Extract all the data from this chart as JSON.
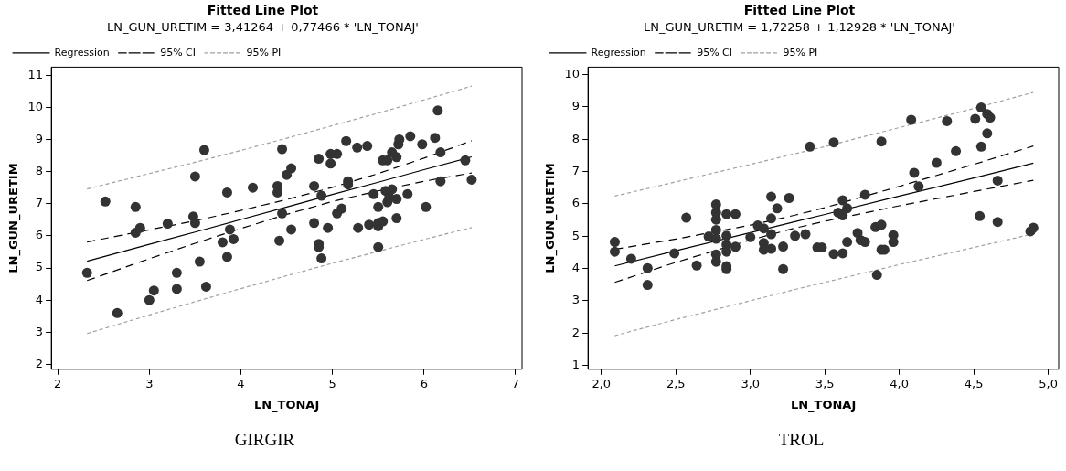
{
  "chart_data": [
    {
      "type": "scatter",
      "title": "Fitted Line Plot",
      "subtitle": "LN_GUN_URETIM = 3,41264 + 0,77466 * 'LN_TONAJ'",
      "xlabel": "LN_TONAJ",
      "ylabel": "LN_GUN_URETIM",
      "xlim": [
        1.93,
        7.07
      ],
      "ylim": [
        1.85,
        11.25
      ],
      "xticks": [
        2,
        3,
        4,
        5,
        6,
        7
      ],
      "yticks": [
        2,
        3,
        4,
        5,
        6,
        7,
        8,
        9,
        10,
        11
      ],
      "grid": false,
      "legend": "top left",
      "annotations": [
        "GIRGIR"
      ],
      "series": [
        {
          "type": "scatter",
          "color": "#333333",
          "marker": "circle",
          "x": [
            2.32,
            2.52,
            2.65,
            2.85,
            2.85,
            2.9,
            3.0,
            3.05,
            3.2,
            3.3,
            3.3,
            3.48,
            3.5,
            3.5,
            3.55,
            3.6,
            3.62,
            3.8,
            3.85,
            3.85,
            3.88,
            3.92,
            4.13,
            4.4,
            4.4,
            4.42,
            4.45,
            4.45,
            4.5,
            4.55,
            4.55,
            4.8,
            4.8,
            4.85,
            4.85,
            4.85,
            4.88,
            4.88,
            4.95,
            4.98,
            4.98,
            5.05,
            5.05,
            5.1,
            5.15,
            5.17,
            5.17,
            5.28,
            5.27,
            5.38,
            5.4,
            5.45,
            5.5,
            5.5,
            5.5,
            5.5,
            5.55,
            5.55,
            5.58,
            5.6,
            5.6,
            5.62,
            5.65,
            5.65,
            5.7,
            5.7,
            5.7,
            5.72,
            5.73,
            5.82,
            5.85,
            5.98,
            6.02,
            6.12,
            6.15,
            6.18,
            6.18,
            6.45,
            6.52
          ],
          "values": [
            4.85,
            7.07,
            3.6,
            6.9,
            6.1,
            6.25,
            4.0,
            4.3,
            6.38,
            4.85,
            4.35,
            6.6,
            7.85,
            6.4,
            5.2,
            8.67,
            4.42,
            5.8,
            7.35,
            5.35,
            6.2,
            5.9,
            7.5,
            7.55,
            7.35,
            5.85,
            6.7,
            8.7,
            7.9,
            8.1,
            6.2,
            6.4,
            7.55,
            8.4,
            5.75,
            5.65,
            5.3,
            7.25,
            6.25,
            8.25,
            8.55,
            8.55,
            6.7,
            6.85,
            8.95,
            7.7,
            7.6,
            6.25,
            8.75,
            8.8,
            6.35,
            7.3,
            6.9,
            6.4,
            6.3,
            5.65,
            6.45,
            8.35,
            7.4,
            7.05,
            8.35,
            7.2,
            7.45,
            8.6,
            6.55,
            7.15,
            8.45,
            8.85,
            9.0,
            7.3,
            9.1,
            8.85,
            6.9,
            9.05,
            9.9,
            8.6,
            7.7,
            8.35,
            7.75
          ]
        },
        {
          "name": "Regression",
          "type": "line",
          "color": "#000000",
          "line_style": "solid",
          "marker": "none",
          "x": [
            2.32,
            3.0,
            3.5,
            4.0,
            4.5,
            5.0,
            5.5,
            6.0,
            6.52
          ],
          "values": [
            5.21,
            5.74,
            6.12,
            6.51,
            6.9,
            7.29,
            7.67,
            8.06,
            8.46
          ]
        },
        {
          "name": "95% CI",
          "type": "line",
          "color": "#000000",
          "line_style": "dashed",
          "marker": "none",
          "x": [
            2.32,
            3.0,
            3.5,
            4.0,
            4.5,
            5.0,
            5.5,
            6.0,
            6.52
          ],
          "values": [
            5.81,
            6.19,
            6.47,
            6.79,
            7.13,
            7.51,
            7.94,
            8.42,
            8.96
          ]
        },
        {
          "type": "line",
          "color": "#000000",
          "line_style": "dashed",
          "marker": "none",
          "x": [
            2.32,
            3.0,
            3.5,
            4.0,
            4.5,
            5.0,
            5.5,
            6.0,
            6.52
          ],
          "values": [
            4.61,
            5.29,
            5.77,
            6.23,
            6.67,
            7.07,
            7.4,
            7.7,
            7.96
          ]
        },
        {
          "name": "95% PI",
          "type": "line",
          "color": "#a0a0a0",
          "line_style": "dotted",
          "marker": "none",
          "x": [
            2.32,
            3.0,
            3.5,
            4.0,
            4.5,
            5.0,
            5.5,
            6.0,
            6.52
          ],
          "values": [
            7.46,
            7.94,
            8.29,
            8.66,
            9.04,
            9.43,
            9.82,
            10.23,
            10.66
          ]
        },
        {
          "type": "line",
          "color": "#a0a0a0",
          "line_style": "dotted",
          "marker": "none",
          "x": [
            2.32,
            3.0,
            3.5,
            4.0,
            4.5,
            5.0,
            5.5,
            6.0,
            6.52
          ],
          "values": [
            2.96,
            3.54,
            3.95,
            4.36,
            4.76,
            5.15,
            5.52,
            5.89,
            6.26
          ]
        }
      ]
    },
    {
      "type": "scatter",
      "title": "Fitted Line Plot",
      "subtitle": "LN_GUN_URETIM = 1,72258 + 1,12928 * 'LN_TONAJ'",
      "xlabel": "LN_TONAJ",
      "ylabel": "LN_GUN_URETIM",
      "xlim": [
        1.91,
        5.07
      ],
      "ylim": [
        0.88,
        10.23
      ],
      "xticks": [
        {
          "value": 2,
          "label": "2,0"
        },
        {
          "value": 2.5,
          "label": "2,5"
        },
        {
          "value": 3,
          "label": "3,0"
        },
        {
          "value": 3.5,
          "label": "3,5"
        },
        {
          "value": 4,
          "label": "4,0"
        },
        {
          "value": 4.5,
          "label": "4,5"
        },
        {
          "value": 5,
          "label": "5,0"
        }
      ],
      "yticks": [
        1,
        2,
        3,
        4,
        5,
        6,
        7,
        8,
        9,
        10
      ],
      "grid": false,
      "legend": "top left",
      "annotations": [
        "TROL"
      ],
      "series": [
        {
          "type": "scatter",
          "color": "#333333",
          "marker": "circle",
          "x": [
            2.09,
            2.09,
            2.2,
            2.31,
            2.31,
            2.49,
            2.57,
            2.64,
            2.72,
            2.77,
            2.77,
            2.77,
            2.77,
            2.77,
            2.77,
            2.77,
            2.84,
            2.84,
            2.84,
            2.84,
            2.84,
            2.84,
            2.9,
            2.9,
            3.0,
            3.05,
            3.09,
            3.09,
            3.09,
            3.14,
            3.14,
            3.14,
            3.14,
            3.18,
            3.22,
            3.22,
            3.26,
            3.3,
            3.37,
            3.4,
            3.45,
            3.56,
            3.48,
            3.56,
            3.62,
            3.65,
            3.62,
            3.65,
            3.59,
            3.62,
            3.77,
            3.72,
            3.74,
            3.77,
            3.84,
            3.88,
            3.88,
            3.9,
            3.88,
            3.85,
            3.96,
            3.96,
            4.08,
            4.1,
            4.13,
            4.25,
            4.32,
            4.38,
            4.51,
            4.55,
            4.59,
            4.61,
            4.59,
            4.55,
            4.54,
            4.66,
            4.66,
            4.88,
            4.9
          ],
          "values": [
            4.82,
            4.52,
            4.3,
            4.01,
            3.49,
            4.47,
            5.57,
            4.09,
            4.99,
            5.98,
            5.73,
            5.51,
            5.19,
            4.92,
            4.43,
            4.21,
            5.68,
            5.01,
            4.74,
            4.52,
            4.07,
            3.98,
            5.68,
            4.67,
            4.97,
            5.33,
            5.24,
            4.79,
            4.58,
            6.22,
            5.55,
            5.06,
            4.61,
            5.86,
            4.68,
            3.98,
            6.18,
            5.01,
            5.06,
            7.77,
            4.65,
            7.9,
            4.65,
            4.45,
            4.47,
            4.82,
            6.11,
            5.86,
            5.73,
            5.64,
            6.28,
            5.1,
            4.88,
            4.82,
            5.28,
            5.35,
            4.58,
            4.58,
            7.93,
            3.8,
            5.03,
            4.82,
            8.6,
            6.96,
            6.54,
            7.27,
            8.56,
            7.63,
            8.63,
            8.98,
            8.78,
            8.67,
            8.18,
            7.77,
            5.62,
            6.72,
            5.44,
            5.15,
            5.26
          ]
        },
        {
          "name": "Regression",
          "type": "line",
          "color": "#000000",
          "line_style": "solid",
          "marker": "none",
          "x": [
            2.09,
            2.5,
            3.0,
            3.3,
            3.5,
            4.0,
            4.5,
            4.9
          ],
          "values": [
            4.08,
            4.55,
            5.11,
            5.45,
            5.67,
            6.24,
            6.8,
            7.26
          ]
        },
        {
          "name": "95% CI",
          "type": "line",
          "color": "#000000",
          "line_style": "dashed",
          "marker": "none",
          "x": [
            2.09,
            2.5,
            3.0,
            3.3,
            3.5,
            4.0,
            4.5,
            4.9
          ],
          "values": [
            4.59,
            4.91,
            5.34,
            5.65,
            5.88,
            6.54,
            7.22,
            7.79
          ]
        },
        {
          "type": "line",
          "color": "#000000",
          "line_style": "dashed",
          "marker": "none",
          "x": [
            2.09,
            2.5,
            3.0,
            3.3,
            3.5,
            4.0,
            4.5,
            4.9
          ],
          "values": [
            3.57,
            4.19,
            4.88,
            5.25,
            5.46,
            5.94,
            6.38,
            6.73
          ]
        },
        {
          "name": "95% PI",
          "type": "line",
          "color": "#a0a0a0",
          "line_style": "dotted",
          "marker": "none",
          "x": [
            2.09,
            2.5,
            3.0,
            3.3,
            3.5,
            4.0,
            4.5,
            4.9
          ],
          "values": [
            6.24,
            6.68,
            7.22,
            7.55,
            7.77,
            8.36,
            8.95,
            9.45
          ]
        },
        {
          "type": "line",
          "color": "#a0a0a0",
          "line_style": "dotted",
          "marker": "none",
          "x": [
            2.09,
            2.5,
            3.0,
            3.3,
            3.5,
            4.0,
            4.5,
            4.9
          ],
          "values": [
            1.92,
            2.42,
            3.0,
            3.35,
            3.57,
            4.12,
            4.65,
            5.07
          ]
        }
      ]
    }
  ]
}
